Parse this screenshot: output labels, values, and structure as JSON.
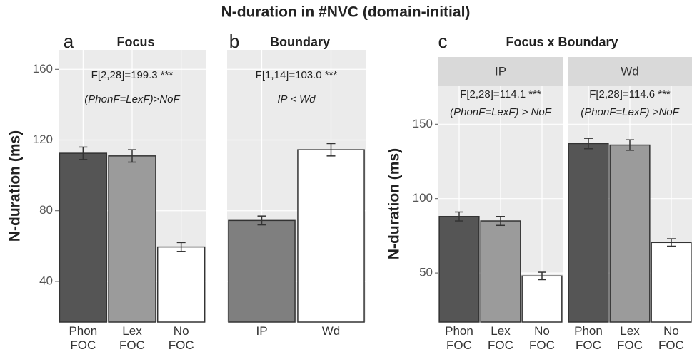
{
  "title": "N-duration in #NVC (domain-initial)",
  "chart_data": [
    {
      "type": "bar",
      "panel": "a",
      "title": "Focus",
      "ylabel": "N-duration (ms)",
      "annotations": [
        "F[2,28]=199.3 ***",
        "(PhonF=LexF)>NoF"
      ],
      "categories": [
        "Phon FOC",
        "Lex FOC",
        "No FOC"
      ],
      "values": [
        112.5,
        111,
        59.5
      ],
      "errors": [
        3.5,
        3.5,
        2.5
      ],
      "colors": [
        "#555555",
        "#9b9b9b",
        "#ffffff"
      ],
      "ylim": [
        17,
        171
      ],
      "yticks": [
        40,
        80,
        120,
        160
      ],
      "grid": true
    },
    {
      "type": "bar",
      "panel": "b",
      "title": "Boundary",
      "annotations": [
        "F[1,14]=103.0 ***",
        "IP < Wd"
      ],
      "categories": [
        "IP",
        "Wd"
      ],
      "values": [
        74.5,
        114.5
      ],
      "errors": [
        2.5,
        3.5
      ],
      "colors": [
        "#7f7f7f",
        "#ffffff"
      ],
      "ylim": [
        17,
        171
      ],
      "grid": true
    },
    {
      "type": "facet-bar",
      "panel": "c",
      "title": "Focus x Boundary",
      "ylabel": "N-duration (ms)",
      "categories": [
        "Phon FOC",
        "Lex FOC",
        "No FOC"
      ],
      "colors": [
        "#555555",
        "#9b9b9b",
        "#ffffff"
      ],
      "ylim": [
        17,
        176
      ],
      "yticks": [
        50,
        100,
        150
      ],
      "grid": true,
      "facets": [
        {
          "label": "IP",
          "annotations": [
            "F[2,28]=114.1 ***",
            "(PhonF=LexF) > NoF"
          ],
          "values": [
            88,
            85,
            48
          ],
          "errors": [
            3,
            3,
            2.5
          ]
        },
        {
          "label": "Wd",
          "annotations": [
            "F[2,28]=114.6 ***",
            "(PhonF=LexF) >NoF"
          ],
          "values": [
            137,
            136,
            70.5
          ],
          "errors": [
            3.5,
            3.5,
            2.5
          ]
        }
      ]
    }
  ]
}
